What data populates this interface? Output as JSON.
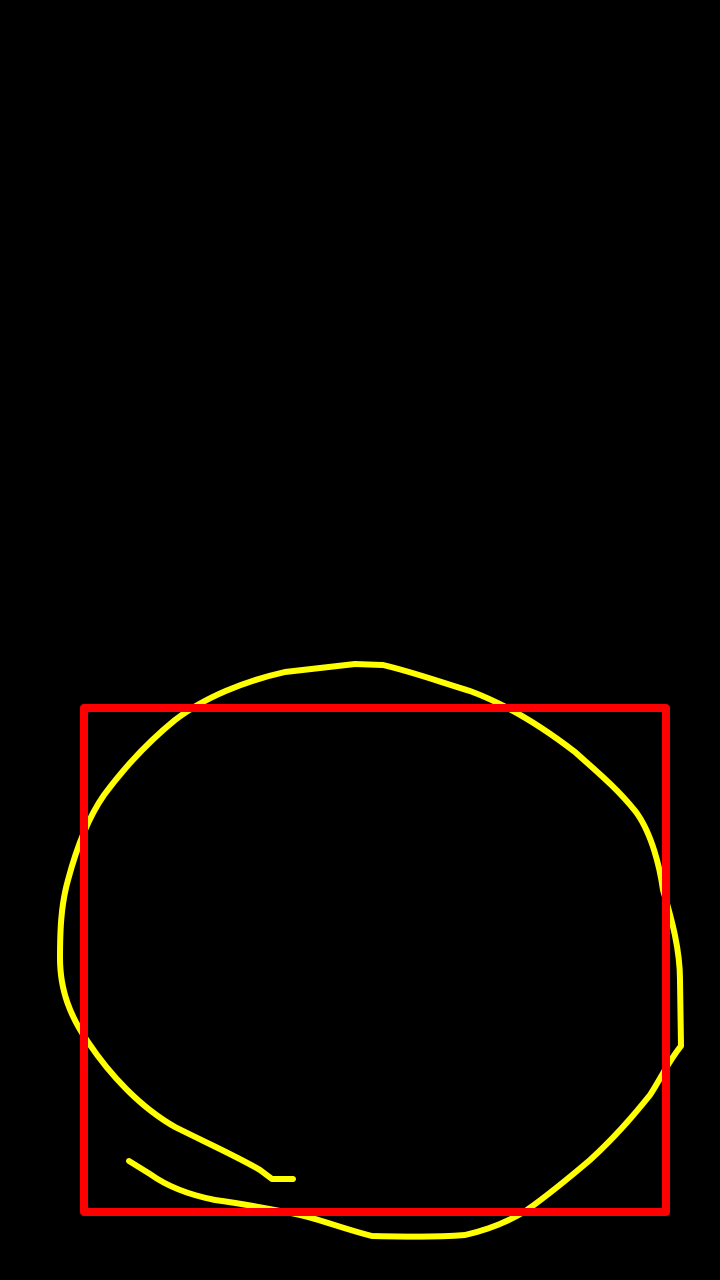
{
  "canvas": {
    "background_color": "#000000"
  },
  "drawing": {
    "rectangle": {
      "stroke_color": "#ff0000",
      "fill": "none"
    },
    "freehand_loop": {
      "stroke_color": "#ffff00",
      "fill": "none"
    }
  }
}
